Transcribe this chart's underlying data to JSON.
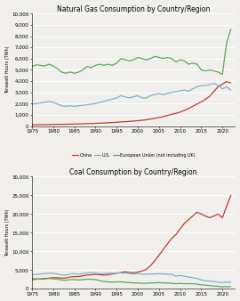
{
  "title1": "Natural Gas Consumption by Country/Region",
  "title2": "Coal Consumption by Country/Region",
  "ylabel": "Terawatt Hours (TWh)",
  "xlabel_ticks": [
    1975,
    1980,
    1985,
    1990,
    1995,
    2000,
    2005,
    2010,
    2015,
    2020
  ],
  "legend_labels": [
    "China",
    "U.S.",
    "European Union (not including UK)"
  ],
  "colors": {
    "China": "#c0392b",
    "US": "#7fb3c8",
    "EU": "#5ba85a"
  },
  "gas": {
    "years": [
      1975,
      1976,
      1977,
      1978,
      1979,
      1980,
      1981,
      1982,
      1983,
      1984,
      1985,
      1986,
      1987,
      1988,
      1989,
      1990,
      1991,
      1992,
      1993,
      1994,
      1995,
      1996,
      1997,
      1998,
      1999,
      2000,
      2001,
      2002,
      2003,
      2004,
      2005,
      2006,
      2007,
      2008,
      2009,
      2010,
      2011,
      2012,
      2013,
      2014,
      2015,
      2016,
      2017,
      2018,
      2019,
      2020,
      2021,
      2022
    ],
    "China": [
      100,
      110,
      115,
      120,
      130,
      140,
      145,
      150,
      155,
      165,
      175,
      185,
      200,
      215,
      225,
      240,
      255,
      270,
      290,
      310,
      335,
      365,
      390,
      415,
      440,
      475,
      510,
      555,
      620,
      680,
      755,
      830,
      935,
      1050,
      1125,
      1240,
      1385,
      1565,
      1755,
      1960,
      2150,
      2380,
      2640,
      3090,
      3500,
      3720,
      3950,
      3850
    ],
    "US": [
      1950,
      2000,
      2050,
      2100,
      2200,
      2100,
      1950,
      1800,
      1750,
      1800,
      1750,
      1800,
      1850,
      1900,
      1950,
      2000,
      2100,
      2200,
      2300,
      2400,
      2500,
      2700,
      2600,
      2500,
      2600,
      2700,
      2500,
      2500,
      2700,
      2800,
      2900,
      2800,
      2900,
      3000,
      3050,
      3150,
      3200,
      3100,
      3300,
      3500,
      3600,
      3600,
      3700,
      3800,
      3600,
      3300,
      3500,
      3200
    ],
    "EU": [
      5300,
      5450,
      5400,
      5350,
      5500,
      5350,
      5100,
      4800,
      4700,
      4800,
      4700,
      4800,
      5000,
      5300,
      5200,
      5400,
      5500,
      5400,
      5500,
      5400,
      5600,
      6000,
      5900,
      5800,
      5900,
      6100,
      6000,
      5900,
      6000,
      6200,
      6100,
      6000,
      6100,
      6000,
      5700,
      5900,
      5800,
      5500,
      5600,
      5500,
      5000,
      4900,
      5000,
      4900,
      4800,
      4600,
      7400,
      8600
    ],
    "ylim": [
      0,
      10000
    ],
    "yticks": [
      0,
      1000,
      2000,
      3000,
      4000,
      5000,
      6000,
      7000,
      8000,
      9000,
      10000
    ]
  },
  "coal": {
    "years": [
      1975,
      1976,
      1977,
      1978,
      1979,
      1980,
      1981,
      1982,
      1983,
      1984,
      1985,
      1986,
      1987,
      1988,
      1989,
      1990,
      1991,
      1992,
      1993,
      1994,
      1995,
      1996,
      1997,
      1998,
      1999,
      2000,
      2001,
      2002,
      2003,
      2004,
      2005,
      2006,
      2007,
      2008,
      2009,
      2010,
      2011,
      2012,
      2013,
      2014,
      2015,
      2016,
      2017,
      2018,
      2019,
      2020,
      2021,
      2022
    ],
    "China": [
      2500,
      2600,
      2700,
      2800,
      2900,
      3000,
      3000,
      2900,
      2900,
      3200,
      3300,
      3300,
      3500,
      3700,
      3800,
      3900,
      3800,
      3700,
      3800,
      4000,
      4200,
      4400,
      4600,
      4400,
      4300,
      4500,
      4800,
      5200,
      6200,
      7500,
      9000,
      10500,
      12000,
      13500,
      14500,
      16000,
      17500,
      18500,
      19500,
      20500,
      20000,
      19500,
      19000,
      19500,
      20000,
      19000,
      22000,
      25000
    ],
    "US": [
      3800,
      3900,
      4000,
      4100,
      4200,
      4200,
      4000,
      3700,
      3700,
      4000,
      4100,
      3900,
      4100,
      4300,
      4400,
      4300,
      4100,
      4100,
      4200,
      4200,
      4200,
      4300,
      4200,
      4100,
      4000,
      4100,
      4000,
      3900,
      4000,
      4000,
      4100,
      4000,
      4000,
      3900,
      3400,
      3600,
      3400,
      3200,
      3000,
      2800,
      2400,
      2200,
      2100,
      2000,
      1800,
      1700,
      1800,
      1800
    ],
    "EU": [
      2800,
      2700,
      2600,
      2700,
      2800,
      2700,
      2600,
      2400,
      2300,
      2500,
      2500,
      2400,
      2500,
      2600,
      2600,
      2500,
      2200,
      2000,
      1900,
      1800,
      1900,
      1900,
      1800,
      1700,
      1600,
      1600,
      1500,
      1500,
      1600,
      1600,
      1700,
      1600,
      1600,
      1500,
      1400,
      1500,
      1400,
      1400,
      1400,
      1300,
      1100,
      1000,
      900,
      800,
      700,
      600,
      600,
      600
    ],
    "ylim": [
      0,
      30000
    ],
    "yticks": [
      0,
      5000,
      10000,
      15000,
      20000,
      25000,
      30000
    ]
  },
  "bg_color": "#f0efeb",
  "grid_color": "#ffffff",
  "line_width": 0.9,
  "title_fontsize": 5.5,
  "tick_fontsize": 4.0,
  "ylabel_fontsize": 3.5,
  "legend_fontsize": 3.5
}
